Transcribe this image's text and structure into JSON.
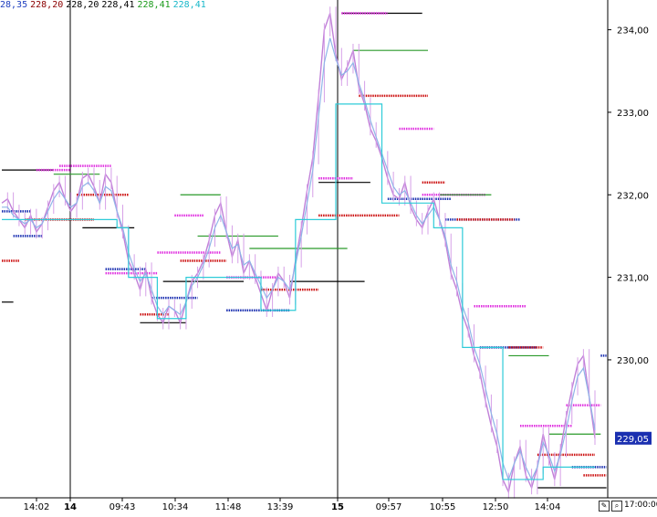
{
  "header": {
    "values": [
      {
        "text": "28,35",
        "color": "#1f3fbf"
      },
      {
        "text": "228,20",
        "color": "#8b0000"
      },
      {
        "text": "228,20",
        "color": "#000000"
      },
      {
        "text": "228,41",
        "color": "#000000"
      },
      {
        "text": "228,41",
        "color": "#1a9a1a"
      },
      {
        "text": "228,41",
        "color": "#17b7c9"
      }
    ]
  },
  "footer": {
    "end_time": "17:00:00"
  },
  "chart_data": {
    "type": "line",
    "title": "",
    "xlabel": "",
    "ylabel": "",
    "ylim": [
      228.35,
      234.25
    ],
    "y_ticks": [
      230.0,
      231.0,
      232.0,
      233.0,
      234.0
    ],
    "y_tick_labels": [
      "230,00",
      "231,00",
      "232,00",
      "233,00",
      "234,00"
    ],
    "x_ticks": [
      {
        "label": "14:02",
        "bold": false
      },
      {
        "label": "14",
        "bold": true
      },
      {
        "label": "09:43",
        "bold": false
      },
      {
        "label": "10:34",
        "bold": false
      },
      {
        "label": "11:48",
        "bold": false
      },
      {
        "label": "13:39",
        "bold": false
      },
      {
        "label": "15",
        "bold": true
      },
      {
        "label": "09:57",
        "bold": false
      },
      {
        "label": "10:55",
        "bold": false
      },
      {
        "label": "12:50",
        "bold": false
      },
      {
        "label": "14:04",
        "bold": false
      }
    ],
    "last_price": {
      "label": "229,05",
      "value": 229.05
    },
    "grid": false,
    "series": [
      {
        "role": "price",
        "color": "#c080d8",
        "values": [
          231.9,
          231.95,
          231.8,
          231.7,
          231.6,
          231.75,
          231.55,
          231.65,
          231.85,
          232.05,
          232.15,
          231.95,
          231.8,
          231.9,
          232.2,
          232.25,
          232.1,
          231.9,
          232.25,
          232.15,
          231.8,
          231.55,
          231.2,
          231.05,
          230.85,
          231.1,
          230.75,
          230.55,
          230.45,
          230.65,
          230.6,
          230.45,
          230.7,
          230.95,
          231.05,
          231.2,
          231.45,
          231.75,
          231.9,
          231.55,
          231.25,
          231.45,
          231.05,
          231.2,
          231.0,
          230.8,
          230.6,
          230.85,
          231.05,
          230.95,
          230.75,
          231.2,
          231.6,
          232.05,
          232.45,
          233.2,
          234.0,
          234.2,
          233.7,
          233.4,
          233.55,
          233.75,
          233.3,
          233.1,
          232.8,
          232.65,
          232.45,
          232.2,
          232.0,
          231.95,
          232.15,
          231.85,
          231.7,
          231.6,
          231.8,
          231.95,
          231.7,
          231.45,
          231.05,
          230.85,
          230.55,
          230.35,
          230.05,
          229.85,
          229.5,
          229.2,
          228.95,
          228.55,
          228.4,
          228.75,
          228.95,
          228.6,
          228.45,
          228.7,
          229.1,
          228.8,
          228.55,
          228.9,
          229.3,
          229.65,
          229.95,
          230.05,
          229.55,
          229.05
        ]
      },
      {
        "role": "average",
        "color": "#8fb5e8",
        "values": [
          231.85,
          231.85,
          231.75,
          231.7,
          231.65,
          231.7,
          231.6,
          231.65,
          231.8,
          231.95,
          232.05,
          231.95,
          231.85,
          231.9,
          232.1,
          232.15,
          232.05,
          231.9,
          232.1,
          232.05,
          231.8,
          231.6,
          231.3,
          231.1,
          230.95,
          231.05,
          230.85,
          230.65,
          230.55,
          230.65,
          230.6,
          230.55,
          230.7,
          230.9,
          231.0,
          231.15,
          231.35,
          231.6,
          231.75,
          231.55,
          231.35,
          231.4,
          231.15,
          231.2,
          231.05,
          230.9,
          230.75,
          230.85,
          231.0,
          230.95,
          230.85,
          231.15,
          231.5,
          231.9,
          232.3,
          232.95,
          233.6,
          233.9,
          233.65,
          233.45,
          233.5,
          233.6,
          233.35,
          233.15,
          232.9,
          232.7,
          232.5,
          232.3,
          232.1,
          232.0,
          232.05,
          231.9,
          231.75,
          231.65,
          231.75,
          231.85,
          231.7,
          231.5,
          231.15,
          230.95,
          230.65,
          230.45,
          230.15,
          229.95,
          229.65,
          229.35,
          229.1,
          228.75,
          228.55,
          228.75,
          228.9,
          228.7,
          228.55,
          228.7,
          229.0,
          228.85,
          228.65,
          228.85,
          229.15,
          229.5,
          229.8,
          229.9,
          229.55,
          229.15
        ]
      },
      {
        "role": "step",
        "color": "#2ecbd8",
        "values": [
          231.7,
          231.7,
          231.7,
          231.7,
          231.7,
          231.7,
          231.7,
          231.7,
          231.7,
          231.7,
          231.7,
          231.7,
          231.7,
          231.7,
          231.7,
          231.7,
          231.7,
          231.7,
          231.7,
          231.7,
          231.6,
          231.6,
          231.0,
          231.0,
          231.0,
          231.0,
          231.0,
          230.5,
          230.5,
          230.5,
          230.5,
          230.5,
          231.0,
          231.0,
          231.0,
          231.0,
          231.0,
          231.0,
          231.0,
          231.0,
          231.0,
          231.0,
          231.0,
          231.0,
          231.0,
          230.6,
          230.6,
          230.6,
          230.6,
          230.6,
          230.6,
          231.7,
          231.7,
          231.7,
          231.7,
          231.7,
          231.7,
          231.7,
          233.1,
          233.1,
          233.1,
          233.1,
          233.1,
          233.1,
          233.1,
          233.1,
          231.9,
          231.9,
          231.9,
          231.9,
          231.9,
          231.9,
          231.9,
          231.9,
          231.9,
          231.6,
          231.6,
          231.6,
          231.6,
          231.6,
          230.15,
          230.15,
          230.15,
          230.15,
          230.15,
          230.15,
          230.15,
          228.55,
          228.55,
          228.55,
          228.55,
          228.55,
          228.55,
          228.55,
          228.7,
          228.7,
          228.7,
          228.7,
          228.7,
          228.7,
          228.7,
          228.7,
          228.7,
          228.7
        ]
      }
    ],
    "levels": [
      {
        "y": 232.3,
        "from": 0,
        "to": 9,
        "kind": "black"
      },
      {
        "y": 231.2,
        "from": 0,
        "to": 3,
        "kind": "red"
      },
      {
        "y": 230.7,
        "from": 0,
        "to": 2,
        "kind": "black"
      },
      {
        "y": 231.8,
        "from": 0,
        "to": 5,
        "kind": "blue"
      },
      {
        "y": 232.3,
        "from": 6,
        "to": 12,
        "kind": "magenta"
      },
      {
        "y": 231.7,
        "from": 4,
        "to": 16,
        "kind": "red"
      },
      {
        "y": 231.5,
        "from": 2,
        "to": 7,
        "kind": "blue"
      },
      {
        "y": 232.35,
        "from": 10,
        "to": 19,
        "kind": "magenta"
      },
      {
        "y": 232.25,
        "from": 9,
        "to": 17,
        "kind": "green"
      },
      {
        "y": 232.0,
        "from": 13,
        "to": 22,
        "kind": "red"
      },
      {
        "y": 231.6,
        "from": 14,
        "to": 23,
        "kind": "black"
      },
      {
        "y": 231.1,
        "from": 18,
        "to": 25,
        "kind": "blue"
      },
      {
        "y": 231.05,
        "from": 18,
        "to": 27,
        "kind": "magenta"
      },
      {
        "y": 230.45,
        "from": 24,
        "to": 32,
        "kind": "black"
      },
      {
        "y": 230.55,
        "from": 24,
        "to": 29,
        "kind": "red"
      },
      {
        "y": 230.75,
        "from": 26,
        "to": 34,
        "kind": "blue"
      },
      {
        "y": 232.0,
        "from": 31,
        "to": 38,
        "kind": "green"
      },
      {
        "y": 231.75,
        "from": 30,
        "to": 35,
        "kind": "magenta"
      },
      {
        "y": 231.3,
        "from": 27,
        "to": 38,
        "kind": "magenta"
      },
      {
        "y": 231.2,
        "from": 31,
        "to": 39,
        "kind": "red"
      },
      {
        "y": 231.5,
        "from": 34,
        "to": 48,
        "kind": "green"
      },
      {
        "y": 230.95,
        "from": 28,
        "to": 42,
        "kind": "black"
      },
      {
        "y": 231.0,
        "from": 39,
        "to": 48,
        "kind": "magenta"
      },
      {
        "y": 230.6,
        "from": 39,
        "to": 50,
        "kind": "blue"
      },
      {
        "y": 231.35,
        "from": 43,
        "to": 60,
        "kind": "green"
      },
      {
        "y": 230.85,
        "from": 45,
        "to": 55,
        "kind": "red"
      },
      {
        "y": 230.95,
        "from": 50,
        "to": 63,
        "kind": "black"
      },
      {
        "y": 232.15,
        "from": 55,
        "to": 64,
        "kind": "black"
      },
      {
        "y": 231.75,
        "from": 55,
        "to": 69,
        "kind": "red"
      },
      {
        "y": 232.2,
        "from": 55,
        "to": 61,
        "kind": "magenta"
      },
      {
        "y": 234.2,
        "from": 59,
        "to": 73,
        "kind": "black"
      },
      {
        "y": 234.2,
        "from": 59,
        "to": 67,
        "kind": "magenta"
      },
      {
        "y": 233.75,
        "from": 61,
        "to": 74,
        "kind": "green"
      },
      {
        "y": 233.2,
        "from": 62,
        "to": 74,
        "kind": "red"
      },
      {
        "y": 232.8,
        "from": 69,
        "to": 75,
        "kind": "magenta"
      },
      {
        "y": 231.95,
        "from": 67,
        "to": 78,
        "kind": "blue"
      },
      {
        "y": 232.15,
        "from": 73,
        "to": 77,
        "kind": "red"
      },
      {
        "y": 232.0,
        "from": 73,
        "to": 84,
        "kind": "magenta"
      },
      {
        "y": 232.0,
        "from": 76,
        "to": 85,
        "kind": "green"
      },
      {
        "y": 231.7,
        "from": 77,
        "to": 90,
        "kind": "blue"
      },
      {
        "y": 231.7,
        "from": 79,
        "to": 89,
        "kind": "red"
      },
      {
        "y": 230.65,
        "from": 82,
        "to": 91,
        "kind": "magenta"
      },
      {
        "y": 230.15,
        "from": 83,
        "to": 93,
        "kind": "blue"
      },
      {
        "y": 230.15,
        "from": 88,
        "to": 94,
        "kind": "red"
      },
      {
        "y": 230.05,
        "from": 88,
        "to": 95,
        "kind": "green"
      },
      {
        "y": 229.2,
        "from": 90,
        "to": 99,
        "kind": "magenta"
      },
      {
        "y": 229.1,
        "from": 95,
        "to": 104,
        "kind": "green"
      },
      {
        "y": 229.45,
        "from": 98,
        "to": 104,
        "kind": "magenta"
      },
      {
        "y": 228.85,
        "from": 93,
        "to": 103,
        "kind": "red"
      },
      {
        "y": 228.7,
        "from": 99,
        "to": 105,
        "kind": "blue"
      },
      {
        "y": 228.6,
        "from": 101,
        "to": 105,
        "kind": "red"
      },
      {
        "y": 228.45,
        "from": 93,
        "to": 105,
        "kind": "black"
      },
      {
        "y": 230.05,
        "from": 104,
        "to": 105,
        "kind": "blue"
      }
    ],
    "session_dividers": [
      "14",
      "15"
    ]
  }
}
